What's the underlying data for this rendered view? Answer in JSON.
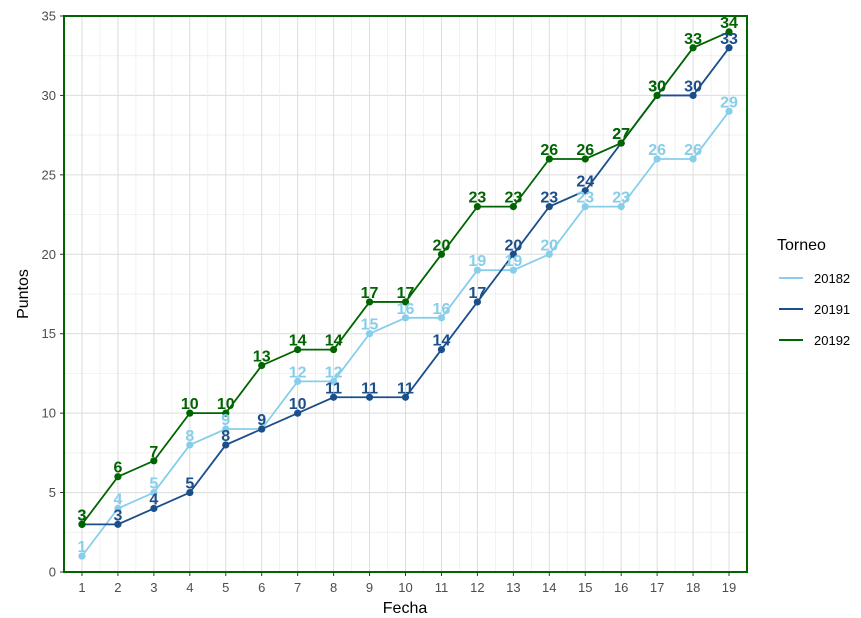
{
  "chart_data": {
    "type": "line",
    "title": "",
    "xlabel": "Fecha",
    "ylabel": "Puntos",
    "x": [
      1,
      2,
      3,
      4,
      5,
      6,
      7,
      8,
      9,
      10,
      11,
      12,
      13,
      14,
      15,
      16,
      17,
      18,
      19
    ],
    "x_ticks": [
      "1",
      "2",
      "3",
      "4",
      "5",
      "6",
      "7",
      "8",
      "9",
      "10",
      "11",
      "12",
      "13",
      "14",
      "15",
      "16",
      "17",
      "18",
      "19"
    ],
    "y_ticks": [
      "0",
      "5",
      "10",
      "15",
      "20",
      "25",
      "30",
      "35"
    ],
    "ylim": [
      0,
      35
    ],
    "xlim": [
      0.5,
      19.5
    ],
    "grid": true,
    "legend": {
      "title": "Torneo",
      "position": "right"
    },
    "series": [
      {
        "name": "20182",
        "color": "#87CEEB",
        "values": [
          1,
          4,
          5,
          8,
          9,
          9,
          12,
          12,
          15,
          16,
          16,
          19,
          19,
          20,
          23,
          23,
          26,
          26,
          29
        ]
      },
      {
        "name": "20191",
        "color": "#1B4F8A",
        "values": [
          3,
          3,
          4,
          5,
          8,
          9,
          10,
          11,
          11,
          11,
          14,
          17,
          20,
          23,
          24,
          27,
          30,
          30,
          33
        ]
      },
      {
        "name": "20192",
        "color": "#006400",
        "values": [
          3,
          6,
          7,
          10,
          10,
          13,
          14,
          14,
          17,
          17,
          20,
          23,
          23,
          26,
          26,
          27,
          30,
          33,
          34
        ]
      }
    ]
  }
}
